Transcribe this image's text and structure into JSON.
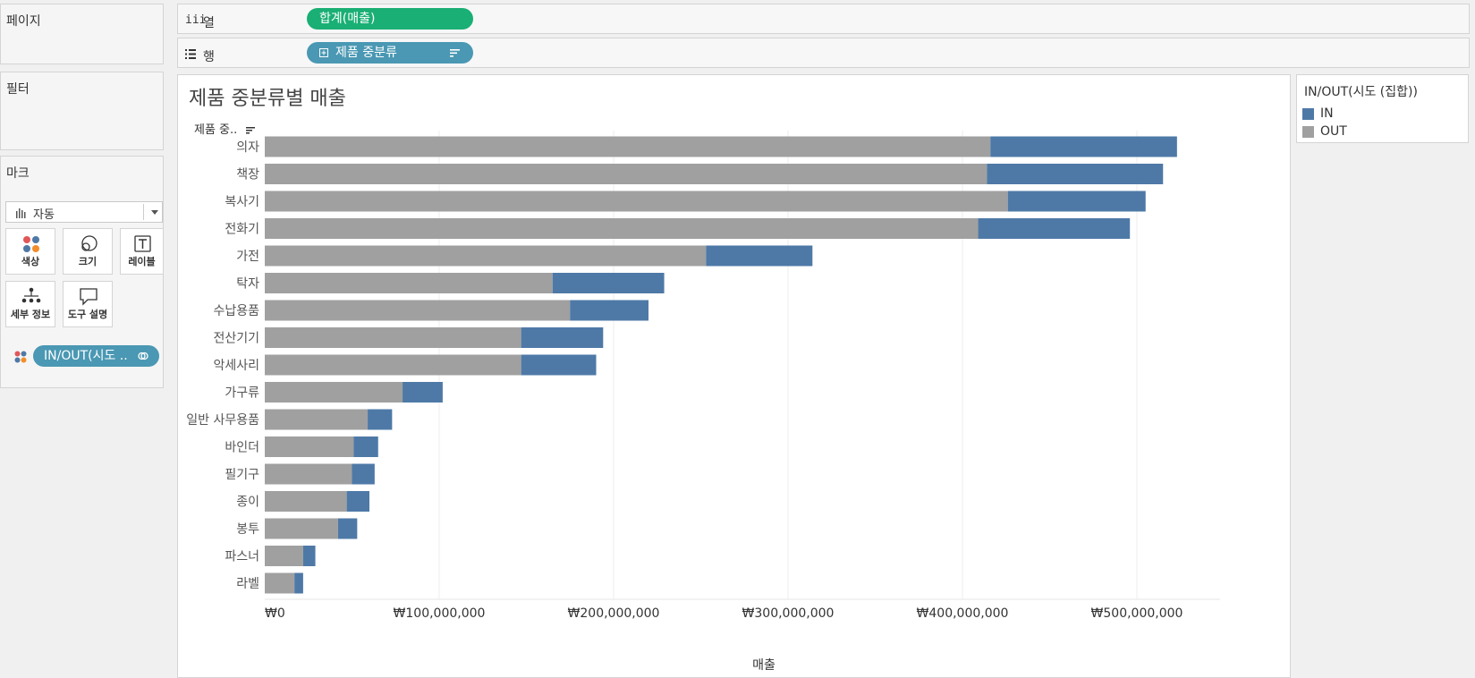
{
  "left_panel": {
    "pages_title": "페이지",
    "filters_title": "필터",
    "marks_title": "마크",
    "mark_type": "자동",
    "mark_buttons": {
      "color": "색상",
      "size": "크기",
      "label": "레이블",
      "detail": "세부 정보",
      "tooltip": "도구 설명"
    },
    "color_pill": "IN/OUT(시도 .."
  },
  "shelves": {
    "columns_label": "열",
    "columns_pill": "합계(매출)",
    "rows_label": "행",
    "rows_pill": "제품 중분류"
  },
  "legend": {
    "title": "IN/OUT(시도 (집합))",
    "items": [
      {
        "label": "IN",
        "color": "#4e79a7"
      },
      {
        "label": "OUT",
        "color": "#a0a0a0"
      }
    ]
  },
  "chart_data": {
    "type": "bar",
    "orientation": "horizontal",
    "stacked": true,
    "title": "제품 중분류별 매출",
    "row_header": "제품 중..",
    "xlabel": "매출",
    "xlim": [
      0,
      550000000
    ],
    "x_ticks": [
      0,
      100000000,
      200000000,
      300000000,
      400000000,
      500000000
    ],
    "x_tick_labels": [
      "₩0",
      "₩100,000,000",
      "₩200,000,000",
      "₩300,000,000",
      "₩400,000,000",
      "₩500,000,000"
    ],
    "grid": true,
    "categories": [
      "의자",
      "책장",
      "복사기",
      "전화기",
      "가전",
      "탁자",
      "수납용품",
      "전산기기",
      "악세사리",
      "가구류",
      "일반 사무용품",
      "바인더",
      "필기구",
      "종이",
      "봉투",
      "파스너",
      "라벨"
    ],
    "series": [
      {
        "name": "OUT",
        "color": "#a0a0a0",
        "values": [
          416000000,
          414000000,
          426000000,
          409000000,
          253000000,
          165000000,
          175000000,
          147000000,
          147000000,
          79000000,
          59000000,
          51000000,
          50000000,
          47000000,
          42000000,
          22000000,
          17000000
        ]
      },
      {
        "name": "IN",
        "color": "#4e79a7",
        "values": [
          107000000,
          101000000,
          79000000,
          87000000,
          61000000,
          64000000,
          45000000,
          47000000,
          43000000,
          23000000,
          14000000,
          14000000,
          13000000,
          13000000,
          11000000,
          7000000,
          5000000
        ]
      }
    ]
  }
}
